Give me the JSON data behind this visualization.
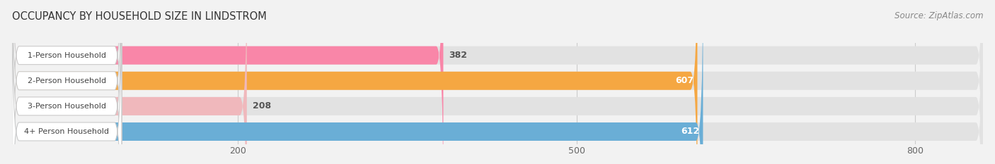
{
  "title": "OCCUPANCY BY HOUSEHOLD SIZE IN LINDSTROM",
  "source": "Source: ZipAtlas.com",
  "categories": [
    "1-Person Household",
    "2-Person Household",
    "3-Person Household",
    "4+ Person Household"
  ],
  "values": [
    382,
    607,
    208,
    612
  ],
  "bar_colors": [
    "#f986a8",
    "#f5a742",
    "#f0b8bc",
    "#6aaed6"
  ],
  "label_colors": [
    "#555555",
    "#ffffff",
    "#555555",
    "#ffffff"
  ],
  "background_color": "#f2f2f2",
  "bar_bg_color": "#e2e2e2",
  "xlim": [
    0,
    860
  ],
  "xticks": [
    200,
    500,
    800
  ],
  "figsize": [
    14.06,
    2.33
  ],
  "dpi": 100
}
